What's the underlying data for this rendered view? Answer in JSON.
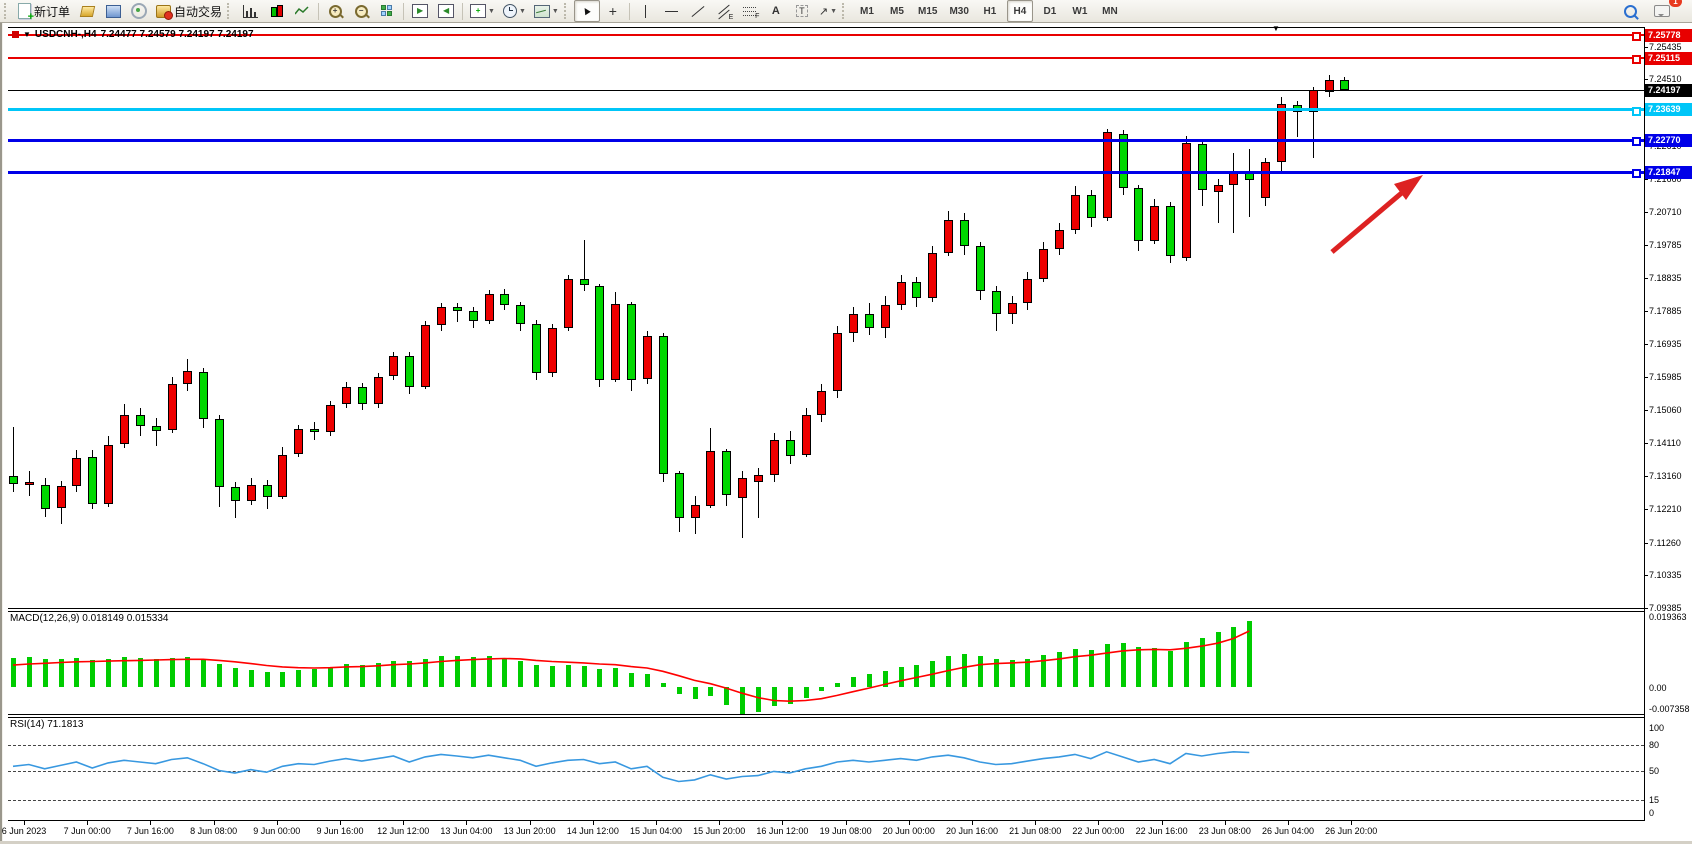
{
  "toolbar": {
    "new_order": "新订单",
    "autotrading": "自动交易",
    "timeframes": [
      "M1",
      "M5",
      "M15",
      "M30",
      "H1",
      "H4",
      "D1",
      "W1",
      "MN"
    ],
    "active_timeframe": "H4",
    "text_tool": "A",
    "label_tool": "T",
    "channel_sub": "E",
    "fibo_sub": "F",
    "chat_badge": "1"
  },
  "chart": {
    "symbol_period": "USDCNH-,H4",
    "ohlc_text": "7.24477 7.24579 7.24197 7.24197",
    "bid_price": "7.24197",
    "accent_colors": {
      "up": "#ee0000",
      "down": "#00d800",
      "resistance": "#e80000",
      "support": "#0000e8",
      "pivot": "#00c6f8",
      "bid": "#000000",
      "arrow": "#dd2222"
    },
    "price_ticks": [
      "7.25435",
      "7.24510",
      "7.23560",
      "7.22610",
      "7.21660",
      "7.20710",
      "7.19785",
      "7.18835",
      "7.17885",
      "7.16935",
      "7.15985",
      "7.15060",
      "7.14110",
      "7.13160",
      "7.12210",
      "7.11260",
      "7.10335",
      "7.09385"
    ],
    "hlines": [
      {
        "price": 7.25778,
        "label": "7.25778",
        "color": "#e80000",
        "thick": 2
      },
      {
        "price": 7.25115,
        "label": "7.25115",
        "color": "#e80000",
        "thick": 2
      },
      {
        "price": 7.23639,
        "label": "7.23639",
        "color": "#00c6f8",
        "thick": 3
      },
      {
        "price": 7.2277,
        "label": "7.22770",
        "color": "#0000e8",
        "thick": 3
      },
      {
        "price": 7.21847,
        "label": "7.21847",
        "color": "#0000e8",
        "thick": 3
      }
    ],
    "date_labels": [
      "6 Jun 2023",
      "7 Jun 00:00",
      "7 Jun 16:00",
      "8 Jun 08:00",
      "9 Jun 00:00",
      "9 Jun 16:00",
      "12 Jun 12:00",
      "13 Jun 04:00",
      "13 Jun 20:00",
      "14 Jun 12:00",
      "15 Jun 04:00",
      "15 Jun 20:00",
      "16 Jun 12:00",
      "19 Jun 08:00",
      "20 Jun 00:00",
      "20 Jun 16:00",
      "21 Jun 08:00",
      "22 Jun 00:00",
      "22 Jun 16:00",
      "23 Jun 08:00",
      "26 Jun 04:00",
      "26 Jun 20:00"
    ]
  },
  "macd": {
    "label": "MACD(12,26,9) 0.018149 0.015334",
    "axis_max": "0.019363",
    "axis_zero": "0.00",
    "axis_min": "-0.007358"
  },
  "rsi": {
    "label": "RSI(14) 71.1813",
    "levels": [
      "100",
      "80",
      "50",
      "15",
      "0"
    ]
  },
  "chart_data": {
    "type": "candlestick",
    "title": "USDCNH-,H4",
    "symbol": "USDCNH-",
    "timeframe": "H4",
    "last_ohlc": {
      "open": "7.24477",
      "high": "7.24579",
      "low": "7.24197",
      "close": "7.24197"
    },
    "candles": [
      [
        7.1316,
        7.1457,
        7.127,
        7.1293
      ],
      [
        7.129,
        7.133,
        7.1258,
        7.1298
      ],
      [
        7.1292,
        7.131,
        7.1198,
        7.1222
      ],
      [
        7.1225,
        7.1302,
        7.1178,
        7.1288
      ],
      [
        7.1288,
        7.1392,
        7.127,
        7.1368
      ],
      [
        7.137,
        7.1392,
        7.1222,
        7.1237
      ],
      [
        7.1237,
        7.1432,
        7.1228,
        7.1405
      ],
      [
        7.1407,
        7.1522,
        7.1398,
        7.1492
      ],
      [
        7.149,
        7.1512,
        7.143,
        7.146
      ],
      [
        7.146,
        7.1482,
        7.1402,
        7.1445
      ],
      [
        7.1447,
        7.16,
        7.144,
        7.158
      ],
      [
        7.158,
        7.165,
        7.156,
        7.1618
      ],
      [
        7.1615,
        7.1625,
        7.1455,
        7.148
      ],
      [
        7.148,
        7.149,
        7.1228,
        7.1285
      ],
      [
        7.1285,
        7.13,
        7.1196,
        7.1245
      ],
      [
        7.1245,
        7.1312,
        7.1235,
        7.1292
      ],
      [
        7.129,
        7.1305,
        7.1222,
        7.1256
      ],
      [
        7.1257,
        7.14,
        7.125,
        7.1378
      ],
      [
        7.138,
        7.1462,
        7.137,
        7.145
      ],
      [
        7.145,
        7.147,
        7.142,
        7.1442
      ],
      [
        7.1442,
        7.153,
        7.1432,
        7.152
      ],
      [
        7.1522,
        7.1585,
        7.151,
        7.1572
      ],
      [
        7.1572,
        7.1582,
        7.1505,
        7.1522
      ],
      [
        7.1522,
        7.161,
        7.1512,
        7.16
      ],
      [
        7.1602,
        7.1672,
        7.159,
        7.166
      ],
      [
        7.166,
        7.167,
        7.155,
        7.1572
      ],
      [
        7.1572,
        7.176,
        7.1565,
        7.1748
      ],
      [
        7.1748,
        7.181,
        7.173,
        7.18
      ],
      [
        7.18,
        7.1812,
        7.1758,
        7.1788
      ],
      [
        7.1788,
        7.18,
        7.174,
        7.176
      ],
      [
        7.176,
        7.1848,
        7.175,
        7.1838
      ],
      [
        7.1838,
        7.185,
        7.179,
        7.1805
      ],
      [
        7.1805,
        7.1815,
        7.1732,
        7.175
      ],
      [
        7.175,
        7.1762,
        7.159,
        7.161
      ],
      [
        7.161,
        7.1752,
        7.16,
        7.174
      ],
      [
        7.174,
        7.189,
        7.173,
        7.188
      ],
      [
        7.188,
        7.1992,
        7.1845,
        7.1862
      ],
      [
        7.186,
        7.1865,
        7.157,
        7.1592
      ],
      [
        7.1592,
        7.1843,
        7.1585,
        7.1809
      ],
      [
        7.1809,
        7.1815,
        7.156,
        7.1591
      ],
      [
        7.1594,
        7.173,
        7.158,
        7.1717
      ],
      [
        7.1717,
        7.1725,
        7.13,
        7.1322
      ],
      [
        7.1325,
        7.133,
        7.1156,
        7.1196
      ],
      [
        7.1196,
        7.126,
        7.115,
        7.1234
      ],
      [
        7.1231,
        7.1455,
        7.1225,
        7.1389
      ],
      [
        7.1389,
        7.1395,
        7.123,
        7.1263
      ],
      [
        7.1254,
        7.133,
        7.114,
        7.1311
      ],
      [
        7.13,
        7.134,
        7.1195,
        7.132
      ],
      [
        7.132,
        7.144,
        7.13,
        7.142
      ],
      [
        7.142,
        7.1445,
        7.135,
        7.1375
      ],
      [
        7.1377,
        7.151,
        7.137,
        7.149
      ],
      [
        7.149,
        7.158,
        7.147,
        7.156
      ],
      [
        7.156,
        7.1745,
        7.154,
        7.1725
      ],
      [
        7.1725,
        7.18,
        7.17,
        7.178
      ],
      [
        7.178,
        7.181,
        7.172,
        7.174
      ],
      [
        7.174,
        7.183,
        7.171,
        7.1805
      ],
      [
        7.1805,
        7.189,
        7.179,
        7.187
      ],
      [
        7.187,
        7.1885,
        7.18,
        7.1825
      ],
      [
        7.1825,
        7.1975,
        7.1815,
        7.1955
      ],
      [
        7.1955,
        7.2075,
        7.1945,
        7.205
      ],
      [
        7.205,
        7.207,
        7.195,
        7.1975
      ],
      [
        7.1975,
        7.1985,
        7.182,
        7.1845
      ],
      [
        7.1845,
        7.186,
        7.173,
        7.178
      ],
      [
        7.178,
        7.183,
        7.175,
        7.181
      ],
      [
        7.181,
        7.19,
        7.179,
        7.188
      ],
      [
        7.188,
        7.1985,
        7.187,
        7.1965
      ],
      [
        7.1965,
        7.204,
        7.195,
        7.202
      ],
      [
        7.202,
        7.2145,
        7.201,
        7.212
      ],
      [
        7.212,
        7.2135,
        7.203,
        7.2055
      ],
      [
        7.2055,
        7.231,
        7.2045,
        7.23
      ],
      [
        7.2295,
        7.2305,
        7.212,
        7.214
      ],
      [
        7.214,
        7.215,
        7.196,
        7.199
      ],
      [
        7.199,
        7.211,
        7.198,
        7.209
      ],
      [
        7.209,
        7.21,
        7.1925,
        7.1945
      ],
      [
        7.194,
        7.229,
        7.193,
        7.2269
      ],
      [
        7.2266,
        7.228,
        7.209,
        7.2135
      ],
      [
        7.2129,
        7.2165,
        7.204,
        7.2149
      ],
      [
        7.2149,
        7.2241,
        7.2012,
        7.2183
      ],
      [
        7.2188,
        7.2253,
        7.2058,
        7.2163
      ],
      [
        7.2112,
        7.2225,
        7.209,
        7.2215
      ],
      [
        7.2215,
        7.24,
        7.219,
        7.238
      ],
      [
        7.2378,
        7.239,
        7.2286,
        7.2358
      ],
      [
        7.2358,
        7.243,
        7.2227,
        7.2421
      ],
      [
        7.2415,
        7.2464,
        7.24,
        7.2449
      ],
      [
        7.24477,
        7.24579,
        7.24197,
        7.24197
      ]
    ],
    "macd_histogram": [
      0.008,
      0.0082,
      0.0078,
      0.0076,
      0.0079,
      0.0074,
      0.0078,
      0.0082,
      0.008,
      0.0077,
      0.008,
      0.0082,
      0.0075,
      0.0062,
      0.0052,
      0.0046,
      0.004,
      0.0042,
      0.0046,
      0.005,
      0.0056,
      0.0062,
      0.006,
      0.0065,
      0.0072,
      0.007,
      0.0078,
      0.0084,
      0.0086,
      0.0082,
      0.0084,
      0.008,
      0.0072,
      0.006,
      0.0058,
      0.006,
      0.0058,
      0.005,
      0.0052,
      0.0038,
      0.0036,
      0.001,
      -0.0018,
      -0.0032,
      -0.0026,
      -0.0048,
      -0.0074,
      -0.0068,
      -0.0052,
      -0.0046,
      -0.003,
      -0.0012,
      0.001,
      0.0028,
      0.0036,
      0.0044,
      0.0055,
      0.006,
      0.0072,
      0.0085,
      0.009,
      0.0086,
      0.0078,
      0.0074,
      0.0078,
      0.0088,
      0.0096,
      0.0105,
      0.0102,
      0.0118,
      0.012,
      0.011,
      0.0108,
      0.01,
      0.0122,
      0.0135,
      0.015,
      0.0165,
      0.018149
    ],
    "macd_signal": [
      0.006,
      0.0063,
      0.0065,
      0.0067,
      0.0069,
      0.007,
      0.0071,
      0.0072,
      0.0073,
      0.0074,
      0.0075,
      0.0076,
      0.0076,
      0.0073,
      0.0069,
      0.0064,
      0.0059,
      0.0055,
      0.0053,
      0.0052,
      0.0053,
      0.0055,
      0.0056,
      0.0058,
      0.0061,
      0.0063,
      0.0066,
      0.007,
      0.0073,
      0.0075,
      0.0077,
      0.0078,
      0.0077,
      0.0073,
      0.007,
      0.0068,
      0.0066,
      0.0063,
      0.0061,
      0.0056,
      0.0052,
      0.0043,
      0.0031,
      0.0018,
      0.0009,
      -0.0003,
      -0.0017,
      -0.0029,
      -0.0037,
      -0.0039,
      -0.0037,
      -0.0032,
      -0.0023,
      -0.0013,
      -0.0003,
      0.0007,
      0.0017,
      0.0026,
      0.0035,
      0.0045,
      0.0054,
      0.0061,
      0.0064,
      0.0066,
      0.0068,
      0.0072,
      0.0077,
      0.0083,
      0.0087,
      0.0093,
      0.0099,
      0.0102,
      0.0103,
      0.0102,
      0.0106,
      0.0112,
      0.012,
      0.0133,
      0.015334
    ],
    "rsi_values": [
      55,
      57,
      52,
      56,
      60,
      53,
      59,
      62,
      60,
      58,
      63,
      65,
      58,
      50,
      47,
      51,
      48,
      55,
      58,
      57,
      61,
      64,
      61,
      64,
      67,
      60,
      66,
      69,
      67,
      65,
      68,
      65,
      62,
      55,
      59,
      62,
      63,
      58,
      60,
      52,
      55,
      42,
      37,
      39,
      45,
      40,
      43,
      44,
      49,
      47,
      52,
      55,
      60,
      62,
      60,
      62,
      64,
      62,
      66,
      68,
      65,
      60,
      57,
      58,
      61,
      64,
      66,
      69,
      64,
      72,
      66,
      60,
      63,
      58,
      70,
      67,
      70,
      72,
      71.18
    ]
  }
}
